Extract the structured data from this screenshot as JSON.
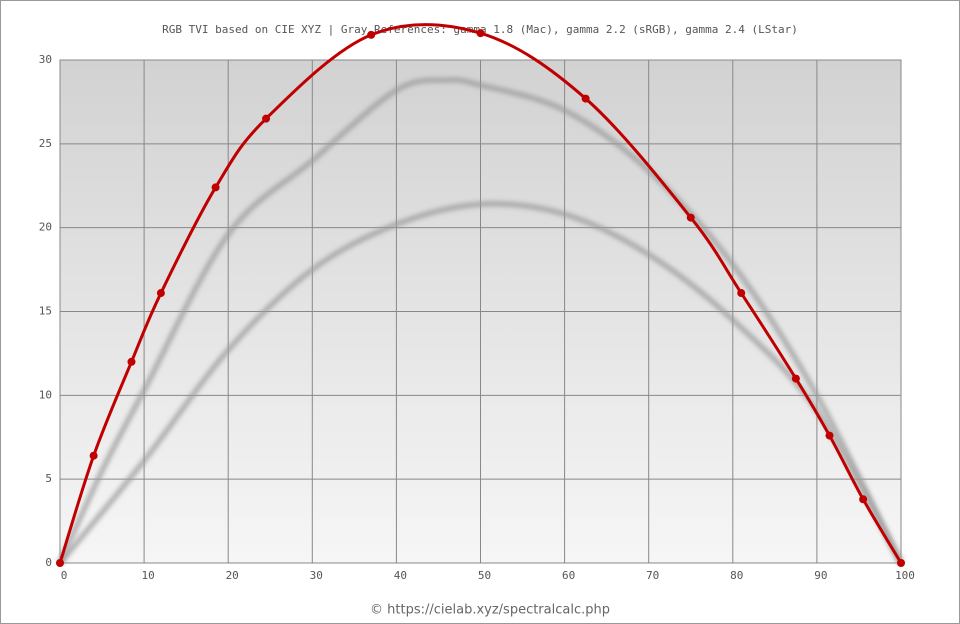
{
  "chart_data": {
    "type": "line",
    "title": "RGB TVI based on CIE XYZ  |  Gray References: gamma 1.8 (Mac), gamma 2.2 (sRGB), gamma 2.4 (LStar)",
    "footer": "© https://cielab.xyz/spectralcalc.php",
    "xlim": [
      0,
      100
    ],
    "ylim": [
      0,
      30
    ],
    "xticks": [
      0,
      10,
      20,
      30,
      40,
      50,
      60,
      70,
      80,
      90,
      100
    ],
    "yticks": [
      0,
      5,
      10,
      15,
      20,
      25,
      30
    ],
    "grid": true,
    "series": [
      {
        "color": "#999999",
        "x": [
          0,
          5,
          10,
          20,
          30,
          40,
          46,
          50,
          60,
          70,
          80,
          90,
          100
        ],
        "values": [
          0,
          5.5,
          10.3,
          19.6,
          24,
          28.2,
          28.8,
          28.5,
          27,
          23.4,
          17.8,
          10,
          0
        ]
      },
      {
        "color": "#999999",
        "x": [
          0,
          10,
          20,
          30,
          40,
          50,
          60,
          70,
          80,
          90,
          100
        ],
        "values": [
          0,
          6.1,
          12.7,
          17.5,
          20.2,
          21.4,
          20.8,
          18.4,
          14.5,
          9.1,
          0
        ]
      },
      {
        "color": "#c00000",
        "markers": true,
        "x": [
          0,
          4,
          8.5,
          12,
          18.5,
          24.5,
          37,
          50,
          62.5,
          75,
          81,
          87.5,
          91.5,
          95.5,
          100
        ],
        "values": [
          0,
          6.4,
          12,
          16.1,
          22.4,
          26.5,
          31.5,
          31.6,
          27.7,
          20.6,
          16.1,
          11,
          7.6,
          3.8,
          0
        ]
      }
    ]
  }
}
